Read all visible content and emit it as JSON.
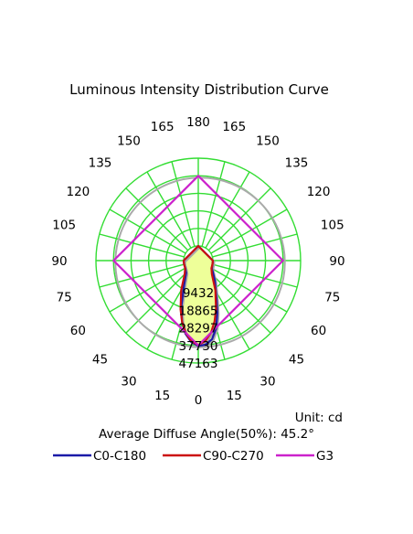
{
  "chart_data": {
    "type": "polar",
    "title": "Luminous Intensity Distribution Curve",
    "unit_label": "Unit: cd",
    "beam_angle_label": "Average Diffuse Angle(50%): 45.2°",
    "angle_labels": {
      "left": [
        "0",
        "15",
        "30",
        "45",
        "60",
        "75",
        "90",
        "105",
        "120",
        "135",
        "150",
        "165",
        "180"
      ],
      "right": [
        "15",
        "30",
        "45",
        "60",
        "75",
        "90",
        "105",
        "120",
        "135",
        "150",
        "165"
      ]
    },
    "ring_values": [
      "9432",
      "18865",
      "28297",
      "37730",
      "47163"
    ],
    "r_max": 47163,
    "grid": true,
    "grid_color": "#33dd33",
    "series": [
      {
        "name": "C0-C180",
        "color": "#1a1aa8",
        "points": [
          {
            "angle": -180,
            "value": 0
          },
          {
            "angle": -90,
            "value": 0
          },
          {
            "angle": -75,
            "value": 0
          },
          {
            "angle": -60,
            "value": 200
          },
          {
            "angle": -45,
            "value": 1400
          },
          {
            "angle": -30,
            "value": 7500
          },
          {
            "angle": -20,
            "value": 19000
          },
          {
            "angle": -15,
            "value": 26000
          },
          {
            "angle": -10,
            "value": 32000
          },
          {
            "angle": -5,
            "value": 36000
          },
          {
            "angle": 0,
            "value": 38000
          },
          {
            "angle": 5,
            "value": 37500
          },
          {
            "angle": 10,
            "value": 35000
          },
          {
            "angle": 15,
            "value": 29500
          },
          {
            "angle": 20,
            "value": 22000
          },
          {
            "angle": 25,
            "value": 15500
          },
          {
            "angle": 30,
            "value": 11000
          },
          {
            "angle": 40,
            "value": 6000
          },
          {
            "angle": 50,
            "value": 2500
          },
          {
            "angle": 60,
            "value": 600
          },
          {
            "angle": 75,
            "value": 0
          },
          {
            "angle": 90,
            "value": 0
          },
          {
            "angle": 180,
            "value": 0
          }
        ]
      },
      {
        "name": "C90-C270",
        "color": "#cc1111",
        "points": [
          {
            "angle": -180,
            "value": 0
          },
          {
            "angle": -90,
            "value": 0
          },
          {
            "angle": -75,
            "value": 0
          },
          {
            "angle": -60,
            "value": 300
          },
          {
            "angle": -45,
            "value": 2500
          },
          {
            "angle": -30,
            "value": 10500
          },
          {
            "angle": -20,
            "value": 20000
          },
          {
            "angle": -15,
            "value": 26000
          },
          {
            "angle": -10,
            "value": 31500
          },
          {
            "angle": -5,
            "value": 35500
          },
          {
            "angle": 0,
            "value": 37500
          },
          {
            "angle": 5,
            "value": 35500
          },
          {
            "angle": 10,
            "value": 31500
          },
          {
            "angle": 15,
            "value": 26000
          },
          {
            "angle": 20,
            "value": 20000
          },
          {
            "angle": 30,
            "value": 10500
          },
          {
            "angle": 45,
            "value": 2500
          },
          {
            "angle": 60,
            "value": 300
          },
          {
            "angle": 75,
            "value": 0
          },
          {
            "angle": 90,
            "value": 0
          },
          {
            "angle": 180,
            "value": 0
          }
        ]
      },
      {
        "name": "G3",
        "color": "#cc22cc",
        "points": [
          {
            "angle": -180,
            "value": 37700
          },
          {
            "angle": -90,
            "value": 37700
          },
          {
            "angle": 0,
            "value": 37700
          },
          {
            "angle": 90,
            "value": 37700
          },
          {
            "angle": 180,
            "value": 37700
          }
        ]
      }
    ],
    "shadow_color": "#aaaaaa",
    "fill_color": "#eeff99",
    "legend_position": "bottom"
  }
}
